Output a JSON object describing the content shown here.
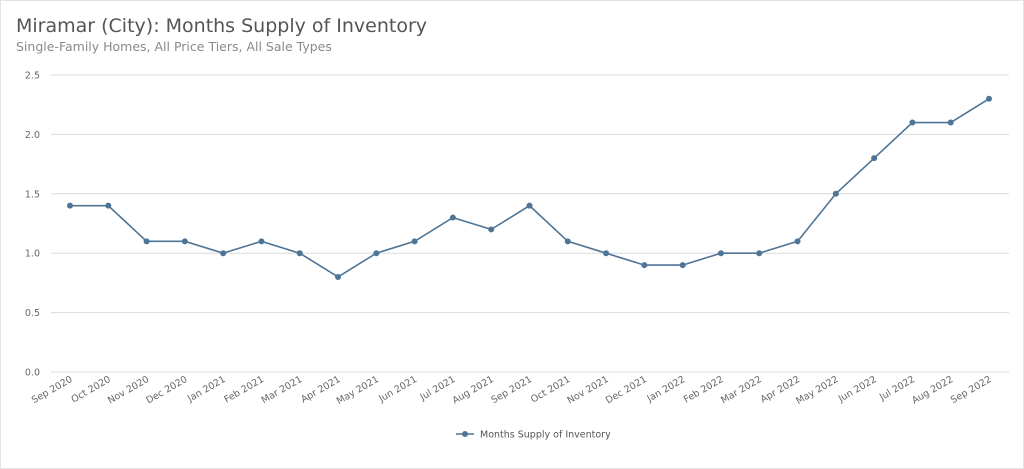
{
  "chart_data": {
    "type": "line",
    "title": "Miramar (City): Months Supply of Inventory",
    "subtitle": "Single-Family Homes, All Price Tiers, All Sale Types",
    "xlabel": "",
    "ylabel": "",
    "ylim": [
      0,
      2.5
    ],
    "yticks": [
      "0.0",
      "0.5",
      "1.0",
      "1.5",
      "2.0",
      "2.5"
    ],
    "grid": true,
    "legend_position": "bottom-center",
    "categories": [
      "Sep 2020",
      "Oct 2020",
      "Nov 2020",
      "Dec 2020",
      "Jan 2021",
      "Feb 2021",
      "Mar 2021",
      "Apr 2021",
      "May 2021",
      "Jun 2021",
      "Jul 2021",
      "Aug 2021",
      "Sep 2021",
      "Oct 2021",
      "Nov 2021",
      "Dec 2021",
      "Jan 2022",
      "Feb 2022",
      "Mar 2022",
      "Apr 2022",
      "May 2022",
      "Jun 2022",
      "Jul 2022",
      "Aug 2022",
      "Sep 2022"
    ],
    "series": [
      {
        "name": "Months Supply of Inventory",
        "color": "#4e7496",
        "values": [
          1.4,
          1.4,
          1.1,
          1.1,
          1.0,
          1.1,
          1.0,
          0.8,
          1.0,
          1.1,
          1.3,
          1.2,
          1.4,
          1.1,
          1.0,
          0.9,
          0.9,
          1.0,
          1.0,
          1.1,
          1.5,
          1.8,
          2.1,
          2.1,
          2.3
        ]
      }
    ]
  }
}
